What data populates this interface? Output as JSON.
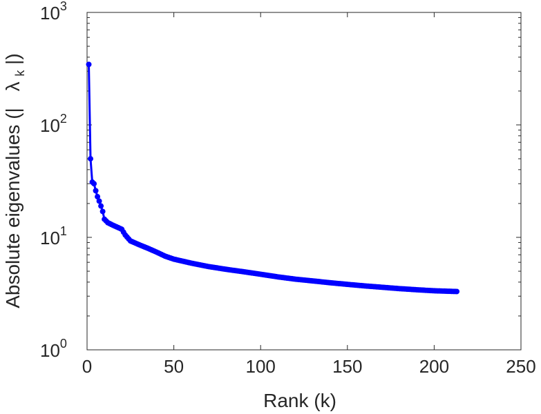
{
  "chart_data": {
    "type": "line",
    "xlabel": "Rank (k)",
    "ylabel": {
      "prefix": "Absolute eigenvalues (|",
      "symbol": "λ",
      "subscript": "k",
      "suffix": "|)"
    },
    "xlim": [
      0,
      250
    ],
    "ylim": [
      1,
      1000
    ],
    "yscale": "log",
    "grid": false,
    "x_ticks": [
      0,
      50,
      100,
      150,
      200,
      250
    ],
    "y_ticks": [
      {
        "value": 1,
        "base": "10",
        "exp": "0"
      },
      {
        "value": 10,
        "base": "10",
        "exp": "1"
      },
      {
        "value": 100,
        "base": "10",
        "exp": "2"
      },
      {
        "value": 1000,
        "base": "10",
        "exp": "3"
      }
    ],
    "series": [
      {
        "color": "#0000ff",
        "marker": "circle",
        "n_points": 213,
        "anchor_points": [
          [
            1,
            345
          ],
          [
            2,
            50
          ],
          [
            3,
            31
          ],
          [
            4,
            30
          ],
          [
            5,
            26
          ],
          [
            6,
            23
          ],
          [
            7,
            21
          ],
          [
            8,
            19
          ],
          [
            9,
            17
          ],
          [
            10,
            14.5
          ],
          [
            12,
            13.5
          ],
          [
            15,
            12.8
          ],
          [
            18,
            12.2
          ],
          [
            20,
            11.8
          ],
          [
            22,
            10.5
          ],
          [
            25,
            9.3
          ],
          [
            30,
            8.6
          ],
          [
            35,
            8.0
          ],
          [
            40,
            7.4
          ],
          [
            45,
            6.8
          ],
          [
            50,
            6.4
          ],
          [
            60,
            5.9
          ],
          [
            70,
            5.5
          ],
          [
            80,
            5.2
          ],
          [
            90,
            4.95
          ],
          [
            100,
            4.7
          ],
          [
            110,
            4.45
          ],
          [
            120,
            4.25
          ],
          [
            130,
            4.1
          ],
          [
            140,
            3.95
          ],
          [
            150,
            3.82
          ],
          [
            160,
            3.7
          ],
          [
            170,
            3.6
          ],
          [
            180,
            3.5
          ],
          [
            190,
            3.42
          ],
          [
            200,
            3.35
          ],
          [
            213,
            3.3
          ]
        ]
      }
    ]
  }
}
